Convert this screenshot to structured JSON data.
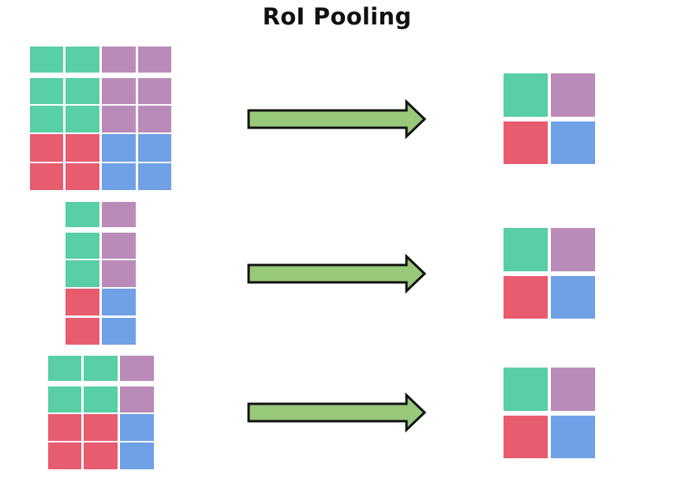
{
  "title": "RoI Pooling",
  "colors": {
    "green": "#58cfa4",
    "purple": "#ba8ab9",
    "red": "#e75c6f",
    "blue": "#70a0e6",
    "arrow_fill": "#98c87a",
    "arrow_stroke": "#111111"
  },
  "pooled_output": {
    "rows": 2,
    "cols": 2,
    "cells": [
      [
        "green",
        "purple"
      ],
      [
        "red",
        "blue"
      ]
    ]
  },
  "examples": [
    {
      "name": "roi-wide",
      "input_rows": 5,
      "input_cols": 4,
      "cells": [
        [
          "green",
          "green",
          "purple",
          "purple"
        ],
        [
          "green",
          "green",
          "purple",
          "purple"
        ],
        [
          "green",
          "green",
          "purple",
          "purple"
        ],
        [
          "red",
          "red",
          "blue",
          "blue"
        ],
        [
          "red",
          "red",
          "blue",
          "blue"
        ]
      ]
    },
    {
      "name": "roi-narrow",
      "input_rows": 5,
      "input_cols": 2,
      "cells": [
        [
          "green",
          "purple"
        ],
        [
          "green",
          "purple"
        ],
        [
          "green",
          "purple"
        ],
        [
          "red",
          "blue"
        ],
        [
          "red",
          "blue"
        ]
      ]
    },
    {
      "name": "roi-medium",
      "input_rows": 4,
      "input_cols": 3,
      "cells": [
        [
          "green",
          "green",
          "purple"
        ],
        [
          "green",
          "green",
          "purple"
        ],
        [
          "red",
          "red",
          "blue"
        ],
        [
          "red",
          "red",
          "blue"
        ]
      ]
    }
  ]
}
